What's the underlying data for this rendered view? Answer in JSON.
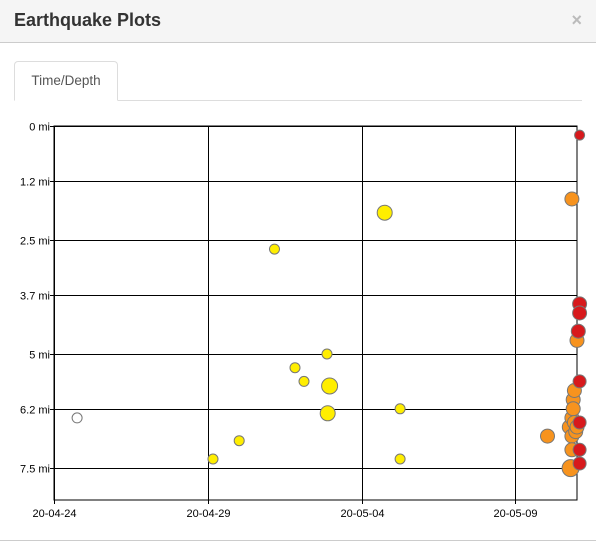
{
  "modal": {
    "title": "Earthquake Plots",
    "close_glyph": "×"
  },
  "tabs": [
    {
      "label": "Time/Depth",
      "active": true
    }
  ],
  "chart_data": {
    "type": "scatter",
    "title": "",
    "xlabel": "",
    "ylabel": "",
    "x_ticks": [
      "20-04-24",
      "20-04-29",
      "20-05-04",
      "20-05-09"
    ],
    "y_ticks": [
      "0 mi",
      "1.2 mi",
      "2.5 mi",
      "3.7 mi",
      "5 mi",
      "6.2 mi",
      "7.5 mi"
    ],
    "x_axis": {
      "type": "date",
      "min": "2020-04-24",
      "max": "2020-05-11"
    },
    "y_axis": {
      "unit": "mi",
      "min": 0,
      "max": 8.2,
      "inverted": true
    },
    "grid": true,
    "colors": {
      "white": "#ffffff",
      "yellow": "#ffee00",
      "orange": "#f7931e",
      "red": "#d7191c",
      "outline": "#777777"
    },
    "points": [
      {
        "date": "2020-04-24 18:00",
        "depth_mi": 6.4,
        "color": "white",
        "mag": 1.0
      },
      {
        "date": "2020-04-29 04:00",
        "depth_mi": 7.3,
        "color": "yellow",
        "mag": 1.0
      },
      {
        "date": "2020-04-30 00:30",
        "depth_mi": 6.9,
        "color": "yellow",
        "mag": 1.0
      },
      {
        "date": "2020-05-01 04:00",
        "depth_mi": 2.7,
        "color": "yellow",
        "mag": 1.0
      },
      {
        "date": "2020-05-01 20:00",
        "depth_mi": 5.3,
        "color": "yellow",
        "mag": 1.0
      },
      {
        "date": "2020-05-02 03:00",
        "depth_mi": 5.6,
        "color": "yellow",
        "mag": 1.0
      },
      {
        "date": "2020-05-02 21:00",
        "depth_mi": 5.0,
        "color": "yellow",
        "mag": 1.0
      },
      {
        "date": "2020-05-02 23:00",
        "depth_mi": 5.7,
        "color": "yellow",
        "mag": 1.6
      },
      {
        "date": "2020-05-02 21:30",
        "depth_mi": 6.3,
        "color": "yellow",
        "mag": 1.5
      },
      {
        "date": "2020-05-04 18:00",
        "depth_mi": 1.9,
        "color": "yellow",
        "mag": 1.5
      },
      {
        "date": "2020-05-05 06:00",
        "depth_mi": 6.2,
        "color": "yellow",
        "mag": 1.0
      },
      {
        "date": "2020-05-05 06:00",
        "depth_mi": 7.3,
        "color": "yellow",
        "mag": 1.0
      },
      {
        "date": "2020-05-10 01:00",
        "depth_mi": 6.8,
        "color": "orange",
        "mag": 1.4
      },
      {
        "date": "2020-05-10 18:00",
        "depth_mi": 6.6,
        "color": "orange",
        "mag": 1.4
      },
      {
        "date": "2020-05-10 19:00",
        "depth_mi": 7.5,
        "color": "orange",
        "mag": 1.7
      },
      {
        "date": "2020-05-10 20:00",
        "depth_mi": 1.6,
        "color": "orange",
        "mag": 1.4
      },
      {
        "date": "2020-05-10 20:00",
        "depth_mi": 6.4,
        "color": "orange",
        "mag": 1.4
      },
      {
        "date": "2020-05-10 20:00",
        "depth_mi": 6.8,
        "color": "orange",
        "mag": 1.4
      },
      {
        "date": "2020-05-10 20:00",
        "depth_mi": 7.1,
        "color": "orange",
        "mag": 1.4
      },
      {
        "date": "2020-05-10 21:00",
        "depth_mi": 6.0,
        "color": "orange",
        "mag": 1.4
      },
      {
        "date": "2020-05-10 21:00",
        "depth_mi": 6.2,
        "color": "orange",
        "mag": 1.4
      },
      {
        "date": "2020-05-10 22:00",
        "depth_mi": 5.8,
        "color": "orange",
        "mag": 1.4
      },
      {
        "date": "2020-05-10 22:00",
        "depth_mi": 6.5,
        "color": "orange",
        "mag": 1.4
      },
      {
        "date": "2020-05-10 23:00",
        "depth_mi": 6.7,
        "color": "orange",
        "mag": 1.4
      },
      {
        "date": "2020-05-11 00:00",
        "depth_mi": 6.6,
        "color": "orange",
        "mag": 1.4
      },
      {
        "date": "2020-05-11 00:00",
        "depth_mi": 4.7,
        "color": "orange",
        "mag": 1.4
      },
      {
        "date": "2020-05-11 02:00",
        "depth_mi": 0.2,
        "color": "red",
        "mag": 1.0
      },
      {
        "date": "2020-05-11 02:00",
        "depth_mi": 3.9,
        "color": "red",
        "mag": 1.4
      },
      {
        "date": "2020-05-11 02:00",
        "depth_mi": 4.1,
        "color": "red",
        "mag": 1.4
      },
      {
        "date": "2020-05-11 01:00",
        "depth_mi": 4.5,
        "color": "red",
        "mag": 1.4
      },
      {
        "date": "2020-05-11 02:00",
        "depth_mi": 5.6,
        "color": "red",
        "mag": 1.3
      },
      {
        "date": "2020-05-11 02:00",
        "depth_mi": 6.5,
        "color": "red",
        "mag": 1.3
      },
      {
        "date": "2020-05-11 02:00",
        "depth_mi": 7.1,
        "color": "red",
        "mag": 1.3
      },
      {
        "date": "2020-05-11 02:00",
        "depth_mi": 7.4,
        "color": "red",
        "mag": 1.3
      }
    ]
  }
}
